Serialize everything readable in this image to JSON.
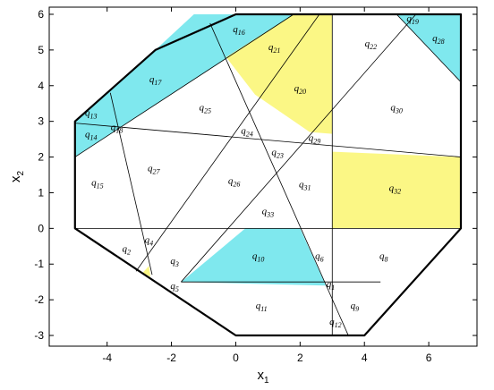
{
  "chart_data": {
    "type": "polyhedral-partition",
    "xlabel": "x",
    "xlabel_sub": "1",
    "ylabel": "x",
    "ylabel_sub": "2",
    "xlim": [
      -5.8,
      7.5
    ],
    "ylim": [
      -3.3,
      6.2
    ],
    "xticks": [
      -4,
      -2,
      0,
      2,
      4,
      6
    ],
    "yticks": [
      -3,
      -2,
      -1,
      0,
      1,
      2,
      3,
      4,
      5,
      6
    ],
    "outer_boundary": [
      [
        0,
        6
      ],
      [
        7,
        6
      ],
      [
        7,
        0
      ],
      [
        4,
        -3
      ],
      [
        0,
        -3
      ],
      [
        -5,
        0
      ],
      [
        -5,
        3
      ],
      [
        -2.5,
        5
      ]
    ],
    "colors": {
      "cyan": "#7fe8ee",
      "yellow": "#fbf785",
      "white": "#ffffff",
      "edge": "#000000"
    },
    "filled_regions": [
      {
        "label": "q16-17 band",
        "color": "cyan",
        "points": [
          [
            -5,
            3
          ],
          [
            -5,
            2
          ],
          [
            1.8,
            6
          ],
          [
            -1.3,
            6
          ],
          [
            -2.5,
            5
          ]
        ]
      },
      {
        "label": "q19/q28",
        "color": "cyan",
        "points": [
          [
            5,
            6
          ],
          [
            7,
            6
          ],
          [
            7,
            4.1
          ]
        ]
      },
      {
        "label": "q21/q20",
        "color": "yellow",
        "points": [
          [
            3,
            6
          ],
          [
            1.8,
            6
          ],
          [
            -0.3,
            4.8
          ],
          [
            0.6,
            3.75
          ],
          [
            2.3,
            2.7
          ],
          [
            3,
            2.65
          ]
        ]
      },
      {
        "label": "q32",
        "color": "yellow",
        "points": [
          [
            3,
            2.15
          ],
          [
            7,
            2
          ],
          [
            7,
            0
          ],
          [
            3,
            0
          ]
        ]
      },
      {
        "label": "q10",
        "color": "cyan",
        "points": [
          [
            -1.7,
            -1.5
          ],
          [
            0.3,
            0
          ],
          [
            2,
            0
          ],
          [
            2.8,
            -1.6
          ]
        ]
      },
      {
        "label": "tiny",
        "color": "yellow",
        "points": [
          [
            -2.9,
            -1.25
          ],
          [
            -2.7,
            -1.05
          ],
          [
            -2.65,
            -1.35
          ]
        ]
      }
    ],
    "lines": [
      [
        [
          -5,
          2.95
        ],
        [
          7,
          2
        ]
      ],
      [
        [
          -5,
          0
        ],
        [
          7,
          0
        ]
      ],
      [
        [
          -1.7,
          -1.5
        ],
        [
          4.5,
          -1.5
        ]
      ],
      [
        [
          3,
          6
        ],
        [
          3,
          -3
        ]
      ],
      [
        [
          -5,
          2
        ],
        [
          1.8,
          6
        ]
      ],
      [
        [
          5,
          6
        ],
        [
          7,
          4.1
        ]
      ],
      [
        [
          -3.9,
          3.8
        ],
        [
          -2.6,
          -1.3
        ]
      ],
      [
        [
          -3.1,
          -1.2
        ],
        [
          2.6,
          6
        ]
      ],
      [
        [
          -1.7,
          -1.5
        ],
        [
          5.6,
          6
        ]
      ],
      [
        [
          -0.8,
          5.75
        ],
        [
          3.5,
          -3
        ]
      ]
    ],
    "region_labels": [
      {
        "name": "q",
        "sub": "1",
        "x": 2.95,
        "y": -1.65
      },
      {
        "name": "q",
        "sub": "2",
        "x": -3.4,
        "y": -0.65
      },
      {
        "name": "q",
        "sub": "3",
        "x": -1.9,
        "y": -1.0
      },
      {
        "name": "q",
        "sub": "4",
        "x": -2.7,
        "y": -0.4
      },
      {
        "name": "q",
        "sub": "5",
        "x": -1.9,
        "y": -1.7
      },
      {
        "name": "q",
        "sub": "6",
        "x": 2.6,
        "y": -0.85
      },
      {
        "name": "q",
        "sub": "8",
        "x": 4.6,
        "y": -0.85
      },
      {
        "name": "q",
        "sub": "9",
        "x": 3.7,
        "y": -2.25
      },
      {
        "name": "q",
        "sub": "10",
        "x": 0.7,
        "y": -0.85
      },
      {
        "name": "q",
        "sub": "11",
        "x": 0.8,
        "y": -2.25
      },
      {
        "name": "q",
        "sub": "12",
        "x": 3.1,
        "y": -2.7
      },
      {
        "name": "q",
        "sub": "13",
        "x": -4.5,
        "y": 3.15
      },
      {
        "name": "q",
        "sub": "14",
        "x": -4.5,
        "y": 2.55
      },
      {
        "name": "q",
        "sub": "15",
        "x": -4.3,
        "y": 1.2
      },
      {
        "name": "q",
        "sub": "16",
        "x": 0.1,
        "y": 5.5
      },
      {
        "name": "q",
        "sub": "17",
        "x": -2.5,
        "y": 4.1
      },
      {
        "name": "q",
        "sub": "18",
        "x": -3.7,
        "y": 2.75
      },
      {
        "name": "q",
        "sub": "19",
        "x": 5.5,
        "y": 5.8
      },
      {
        "name": "q",
        "sub": "20",
        "x": 2.0,
        "y": 3.85
      },
      {
        "name": "q",
        "sub": "21",
        "x": 1.2,
        "y": 5.0
      },
      {
        "name": "q",
        "sub": "22",
        "x": 4.2,
        "y": 5.1
      },
      {
        "name": "q",
        "sub": "23",
        "x": 1.3,
        "y": 2.05
      },
      {
        "name": "q",
        "sub": "24",
        "x": 0.35,
        "y": 2.65
      },
      {
        "name": "q",
        "sub": "25",
        "x": -0.95,
        "y": 3.3
      },
      {
        "name": "q",
        "sub": "26",
        "x": -0.05,
        "y": 1.25
      },
      {
        "name": "q",
        "sub": "27",
        "x": -2.55,
        "y": 1.6
      },
      {
        "name": "q",
        "sub": "28",
        "x": 6.3,
        "y": 5.25
      },
      {
        "name": "q",
        "sub": "29",
        "x": 2.45,
        "y": 2.45
      },
      {
        "name": "q",
        "sub": "30",
        "x": 5.0,
        "y": 3.3
      },
      {
        "name": "q",
        "sub": "31",
        "x": 2.15,
        "y": 1.15
      },
      {
        "name": "q",
        "sub": "32",
        "x": 4.95,
        "y": 1.05
      },
      {
        "name": "q",
        "sub": "33",
        "x": 1.0,
        "y": 0.4
      }
    ]
  }
}
